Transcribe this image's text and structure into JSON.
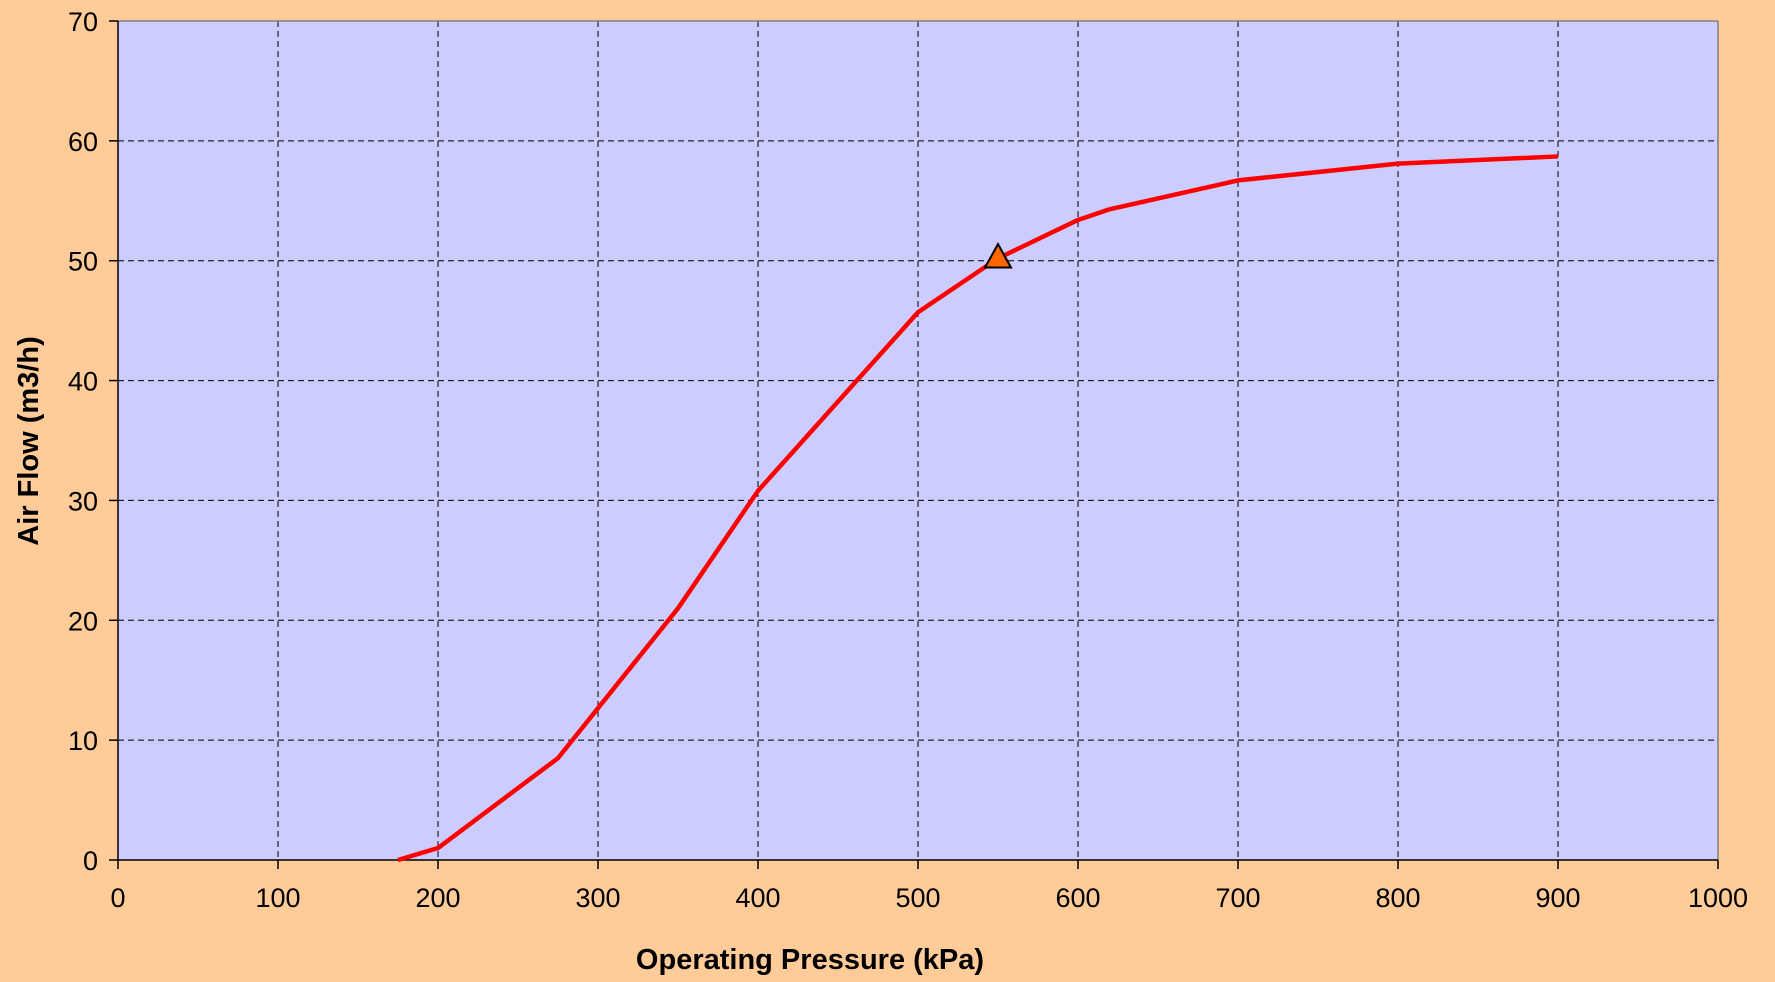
{
  "chart_data": {
    "type": "line",
    "title": "",
    "xlabel": "Operating Pressure (kPa)",
    "ylabel": "Air Flow (m3/h)",
    "xlim": [
      0,
      1000
    ],
    "ylim": [
      0,
      70
    ],
    "x_ticks": [
      0,
      100,
      200,
      300,
      400,
      500,
      600,
      700,
      800,
      900,
      1000
    ],
    "y_ticks": [
      0,
      10,
      20,
      30,
      40,
      50,
      60,
      70
    ],
    "grid": true,
    "grid_style": "dashed",
    "legend": "none",
    "series": [
      {
        "color": "#FF0000",
        "marker": "none",
        "x": [
          175,
          200,
          275,
          350,
          400,
          500,
          550,
          600,
          620,
          700,
          800,
          900
        ],
        "y": [
          0,
          1,
          8.5,
          21,
          30.8,
          45.7,
          50.2,
          53.4,
          54.3,
          56.7,
          58.1,
          58.7
        ]
      },
      {
        "color": "#FF6600",
        "marker": "triangle",
        "x": [
          550
        ],
        "y": [
          50.3
        ]
      }
    ]
  },
  "colors": {
    "page_background": "#FFCC99",
    "plot_background": "#CCCCFF",
    "axis": "#808080",
    "grid": "#000000"
  }
}
